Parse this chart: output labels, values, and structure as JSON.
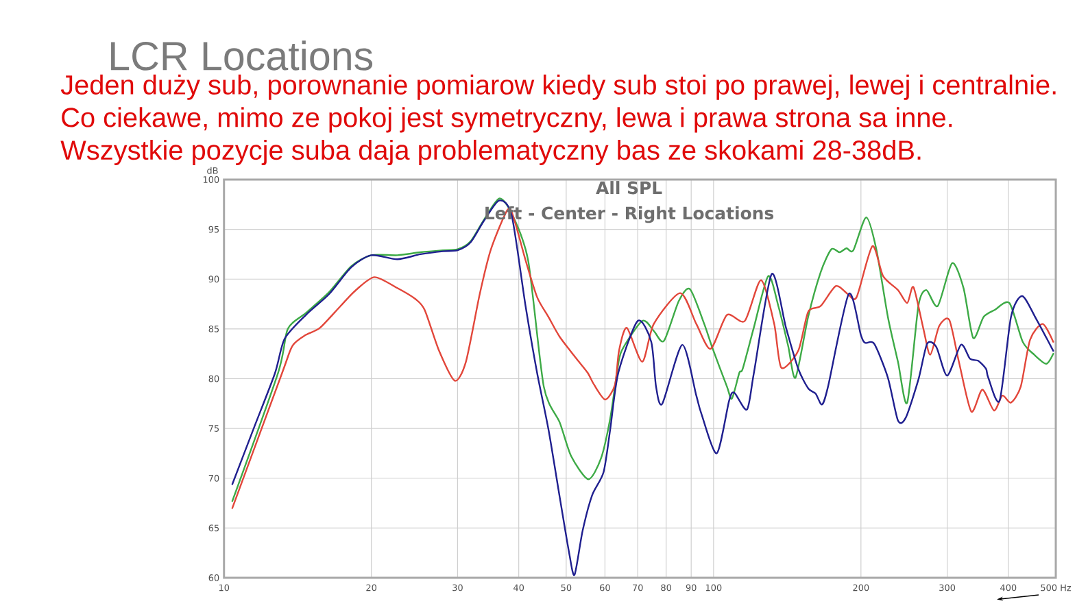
{
  "chart_data": {
    "type": "line",
    "title": "All SPL",
    "subtitle": "Left - Center - Right Locations",
    "ylabel": "dB",
    "annotations": [
      "LCR Locations",
      "Jeden duży sub, porownanie pomiarow kiedy sub stoi po prawej, lewej i centralnie.",
      "Co ciekawe, mimo ze pokoj jest symetryczny, lewa i prawa strona sa inne.",
      "Wszystkie pozycje suba daja problematyczny bas ze skokami 28-38dB."
    ],
    "xlim": [
      10,
      500
    ],
    "ylim": [
      60,
      100
    ],
    "log": "x",
    "grid": true,
    "line_style": "solid",
    "xticks": [
      10,
      20,
      30,
      40,
      50,
      60,
      70,
      80,
      90,
      100,
      200,
      300,
      400,
      {
        "value": 500,
        "label": "500 Hz"
      }
    ],
    "yticks": [
      60,
      65,
      70,
      75,
      80,
      85,
      90,
      95,
      100
    ],
    "series": [
      {
        "color": "#3daa46",
        "x": [
          10.4,
          12.9,
          13.5,
          14.7,
          16.4,
          18.2,
          20,
          22.6,
          25.2,
          28,
          30,
          31.9,
          34,
          36.5,
          38.7,
          41.8,
          45,
          48.5,
          51.2,
          55.5,
          58.9,
          61.5,
          63.5,
          64.9,
          71.5,
          75.5,
          79.2,
          84.9,
          89.5,
          95.7,
          99.6,
          106.5,
          109,
          112.9,
          114.7,
          120.8,
          129.3,
          135.6,
          142,
          147,
          156,
          165.5,
          174,
          180.8,
          186.9,
          193,
          205,
          215,
          227,
          238,
          248.6,
          262,
          272,
          287,
          307,
          324,
          339,
          356,
          375,
          402,
          428,
          452,
          478,
          494
        ],
        "values": [
          67.7,
          80.6,
          85.0,
          86.6,
          88.7,
          91.3,
          92.4,
          92.4,
          92.7,
          92.9,
          93.0,
          93.8,
          96.0,
          98.1,
          96.6,
          91.9,
          79.2,
          75.6,
          72.2,
          69.9,
          72.0,
          76.0,
          80.6,
          82.8,
          85.8,
          84.8,
          83.8,
          87.8,
          89.0,
          85.5,
          83.0,
          79.2,
          78.0,
          80.6,
          81.0,
          85.1,
          90.3,
          87.3,
          83.3,
          80.1,
          86.2,
          90.7,
          93.0,
          92.7,
          93.1,
          92.9,
          96.2,
          93.0,
          86.2,
          81.7,
          77.6,
          87.3,
          88.9,
          87.3,
          91.6,
          89.1,
          84.1,
          86.2,
          86.9,
          87.6,
          83.7,
          82.4,
          81.5,
          82.5
        ]
      },
      {
        "color": "#e2463a",
        "x": [
          10.4,
          13.15,
          13.8,
          14.7,
          15.7,
          17.3,
          18.6,
          20.3,
          22.6,
          24.6,
          25.7,
          27.5,
          29.6,
          31.2,
          33.3,
          35.1,
          38,
          39.2,
          41.3,
          43.6,
          46,
          48.5,
          52.3,
          55.3,
          57,
          60.1,
          62.9,
          64.1,
          66.5,
          71.5,
          75.5,
          85.5,
          92.2,
          98.6,
          106.5,
          115.8,
          125,
          133,
          137.5,
          148.9,
          156,
          165.5,
          177.7,
          188,
          196,
          211,
          222,
          238,
          248.6,
          256,
          268,
          277,
          289,
          303,
          317,
          336,
          354,
          374,
          389,
          405,
          424,
          443,
          470,
          494
        ],
        "values": [
          67.0,
          80.6,
          83.3,
          84.4,
          85.1,
          87.3,
          88.9,
          90.2,
          89.1,
          88.0,
          86.9,
          82.8,
          79.8,
          81.7,
          88.5,
          93.0,
          97.0,
          95.9,
          91.9,
          88.2,
          86.2,
          84.2,
          82.1,
          80.6,
          79.4,
          77.9,
          79.4,
          82.8,
          85.1,
          81.7,
          85.5,
          88.6,
          85.5,
          83.0,
          86.4,
          85.8,
          89.9,
          85.5,
          81.1,
          82.8,
          86.7,
          87.3,
          89.3,
          88.5,
          88.2,
          93.3,
          90.3,
          88.9,
          87.6,
          89.2,
          85.1,
          82.4,
          85.3,
          85.9,
          81.7,
          76.7,
          78.9,
          76.8,
          78.3,
          77.6,
          79.2,
          83.9,
          85.5,
          83.7
        ]
      },
      {
        "color": "#1f1f8f",
        "x": [
          10.4,
          11.5,
          12.7,
          13.3,
          14.7,
          16.4,
          18.2,
          20,
          22.6,
          25.2,
          28,
          30,
          31.9,
          34,
          36.5,
          38.7,
          41.3,
          43.6,
          46,
          48.5,
          50.7,
          52,
          54,
          56.5,
          59.6,
          61.5,
          63.9,
          70,
          74.6,
          76.3,
          78.6,
          86.3,
          92.2,
          94.4,
          101.5,
          107.6,
          110.2,
          117,
          120.9,
          131.4,
          140.6,
          148.9,
          156.2,
          161.6,
          166.5,
          171.3,
          188.8,
          199.9,
          204,
          212.9,
          227,
          238,
          247,
          262,
          273,
          285,
          300,
          320,
          334,
          347,
          360,
          364,
          384,
          405,
          427,
          456,
          494
        ],
        "values": [
          69.4,
          75.0,
          80.5,
          84.0,
          86.4,
          88.5,
          91.2,
          92.4,
          92.0,
          92.5,
          92.8,
          92.9,
          93.7,
          95.9,
          97.9,
          96.4,
          87.3,
          80.6,
          74.9,
          68.1,
          62.5,
          60.3,
          64.7,
          68.3,
          70.6,
          74.9,
          80.6,
          85.8,
          83.7,
          79.2,
          77.5,
          83.4,
          78.3,
          76.5,
          72.5,
          77.8,
          78.6,
          76.9,
          80.6,
          90.5,
          85.1,
          81.0,
          79.0,
          78.5,
          77.4,
          79.2,
          88.5,
          84.4,
          83.6,
          83.5,
          80.1,
          75.8,
          76.1,
          79.9,
          83.5,
          83.2,
          80.3,
          83.4,
          82.0,
          81.8,
          81.0,
          80.1,
          77.8,
          86.2,
          88.3,
          86.0,
          82.8
        ]
      }
    ]
  }
}
